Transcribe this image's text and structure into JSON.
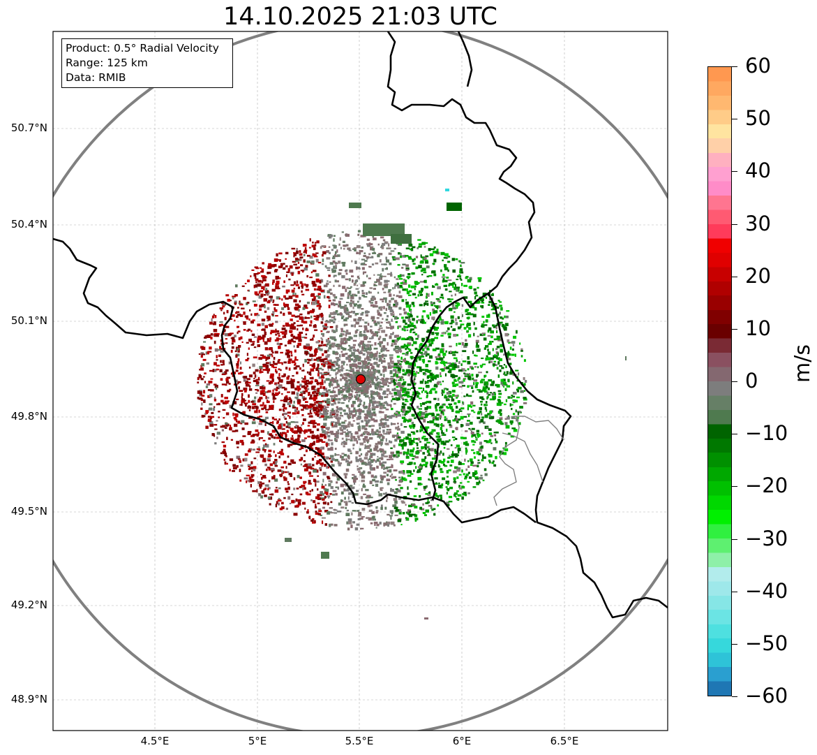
{
  "title": "14.10.2025 21:03 UTC",
  "info": {
    "product": "Product: 0.5° Radial Velocity",
    "range": "Range: 125 km",
    "source": "Data: RMIB"
  },
  "map": {
    "y_axis_labels": [
      "50.7°N",
      "50.4°N",
      "50.1°N",
      "49.8°N",
      "49.5°N",
      "49.2°N",
      "48.9°N"
    ],
    "x_axis_labels": [
      "4.5°E",
      "5°E",
      "5.5°E",
      "6°E",
      "6.5°E"
    ],
    "radar_site": {
      "lon": 5.5,
      "lat": 49.91,
      "color": "#e00000"
    },
    "range_ring_color": "#808080",
    "border_color": "#000000"
  },
  "colorbar": {
    "label": "m/s",
    "min": -60,
    "max": 60,
    "ticks": [
      "60",
      "50",
      "40",
      "30",
      "20",
      "10",
      "0",
      "−10",
      "−20",
      "−30",
      "−40",
      "−50",
      "−60"
    ],
    "colors_bottom_to_top": [
      "#1f77b4",
      "#2a9fd0",
      "#2ec3d8",
      "#36d8dc",
      "#4ee0e0",
      "#6be4e4",
      "#86e6e6",
      "#9ee8ea",
      "#b2ecec",
      "#8ef0a8",
      "#5ef070",
      "#30f040",
      "#00f000",
      "#00d800",
      "#00c000",
      "#00a800",
      "#009000",
      "#007800",
      "#006400",
      "#4f7a4f",
      "#667f66",
      "#7d7d7d",
      "#846870",
      "#8a5060",
      "#7a2a34",
      "#6a0000",
      "#800000",
      "#990000",
      "#b00000",
      "#c80000",
      "#e00000",
      "#f00000",
      "#ff3b5a",
      "#ff5a72",
      "#ff7590",
      "#ff8cc8",
      "#ffa0d0",
      "#ffb0c0",
      "#ffd0a8",
      "#ffe4a0",
      "#ffcc88",
      "#ffb870",
      "#ffa860",
      "#ff9850"
    ]
  }
}
